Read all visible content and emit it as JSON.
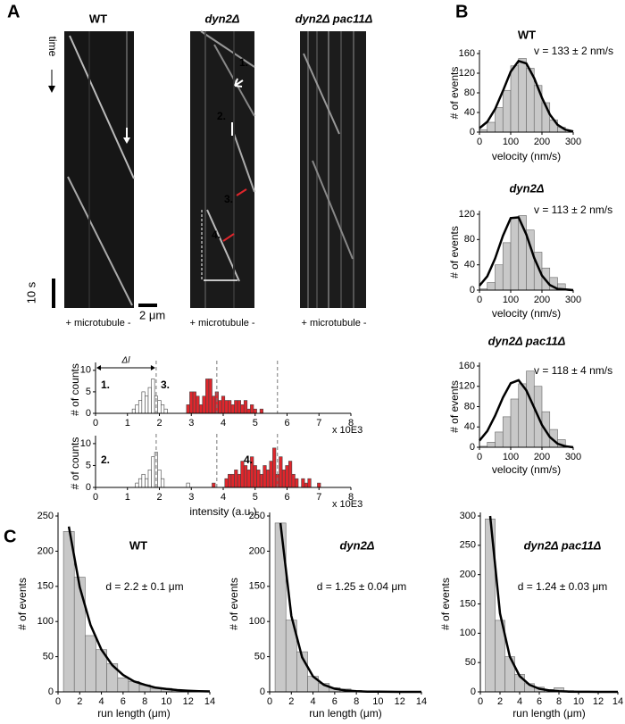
{
  "figure": {
    "panel_labels": [
      "A",
      "B",
      "C"
    ],
    "time_label": "time",
    "time_scale": "10 s",
    "length_scale": "2 μm",
    "kymographs": [
      {
        "title": "WT",
        "caption": "+ microtubule -"
      },
      {
        "title": "dyn2Δ",
        "caption": "+ microtubule -"
      },
      {
        "title": "dyn2Δ pac11Δ",
        "caption": "+ microtubule -"
      }
    ],
    "kymograph_annotations": [
      {
        "text": "1.",
        "color": "#ffffff"
      },
      {
        "text": "2.",
        "color": "#ffffff"
      },
      {
        "text": "3.",
        "color": "#e0262c"
      },
      {
        "text": "4.",
        "color": "#e0262c"
      }
    ]
  },
  "chart_data": [
    {
      "type": "bar",
      "y_label": "# of counts",
      "x_unit": "x 10E3",
      "delta_label": "Δl",
      "annotations": [
        {
          "text": "1.",
          "color": "#000000"
        },
        {
          "text": "3.",
          "color": "#e0262c"
        }
      ],
      "series": [
        {
          "color": "#ffffff",
          "x": [
            1.2,
            1.3,
            1.4,
            1.5,
            1.6,
            1.7,
            1.8,
            1.9,
            2.0,
            2.1,
            2.2
          ],
          "values": [
            1,
            2,
            3,
            5,
            4,
            6,
            8,
            4,
            3,
            2,
            1
          ]
        },
        {
          "color": "#e0262c",
          "x": [
            2.9,
            3.0,
            3.1,
            3.2,
            3.3,
            3.4,
            3.5,
            3.6,
            3.7,
            3.8,
            3.9,
            4.0,
            4.1,
            4.2,
            4.3,
            4.4,
            4.5,
            4.6,
            4.7,
            4.8,
            4.9,
            5.0,
            5.2
          ],
          "values": [
            2,
            5,
            5,
            4,
            2,
            4,
            8,
            8,
            4,
            5,
            3,
            4,
            3,
            3,
            2,
            3,
            3,
            2,
            3,
            1,
            2,
            1,
            1
          ]
        }
      ],
      "reference_lines": [
        1.9,
        3.8,
        5.7
      ],
      "xlim": [
        0,
        8
      ],
      "ylim": [
        0,
        11
      ],
      "xticks": [
        0,
        1,
        2,
        3,
        4,
        5,
        6,
        7,
        8
      ],
      "yticks": [
        0,
        5,
        10
      ]
    },
    {
      "type": "bar",
      "y_label": "# of counts",
      "x_label": "intensity (a.u.)",
      "x_unit": "x 10E3",
      "annotations": [
        {
          "text": "2.",
          "color": "#000000"
        },
        {
          "text": "4.",
          "color": "#e0262c"
        }
      ],
      "series": [
        {
          "color": "#ffffff",
          "x": [
            1.3,
            1.4,
            1.5,
            1.6,
            1.7,
            1.8,
            1.9,
            2.0,
            2.1,
            2.9
          ],
          "values": [
            1,
            2,
            3,
            2,
            4,
            7,
            8,
            4,
            2,
            1
          ]
        },
        {
          "color": "#e0262c",
          "x": [
            3.7,
            4.1,
            4.2,
            4.3,
            4.4,
            4.5,
            4.6,
            4.7,
            4.8,
            4.9,
            5.0,
            5.1,
            5.2,
            5.3,
            5.4,
            5.5,
            5.6,
            5.7,
            5.8,
            5.9,
            6.0,
            6.1,
            6.2,
            6.3,
            6.5,
            6.6,
            6.7,
            7.0
          ],
          "values": [
            1,
            2,
            3,
            3,
            4,
            3,
            6,
            5,
            4,
            7,
            5,
            4,
            3,
            5,
            4,
            6,
            9,
            3,
            7,
            4,
            5,
            6,
            3,
            2,
            2,
            1,
            2,
            1
          ]
        }
      ],
      "reference_lines": [
        1.9,
        3.8,
        5.7
      ],
      "xlim": [
        0,
        8
      ],
      "ylim": [
        0,
        11
      ],
      "xticks": [
        0,
        1,
        2,
        3,
        4,
        5,
        6,
        7,
        8
      ],
      "yticks": [
        0,
        5,
        10
      ]
    },
    {
      "type": "histogram",
      "title": "WT",
      "annotation": "v = 133 ± 2 nm/s",
      "x_label": "velocity (nm/s)",
      "y_label": "# of events",
      "color": "#c8c8c8",
      "bins": [
        0,
        25,
        50,
        75,
        100,
        125,
        150,
        175,
        200,
        225,
        250,
        275
      ],
      "values": [
        5,
        20,
        50,
        85,
        135,
        150,
        130,
        95,
        60,
        25,
        10
      ],
      "fit": {
        "x": [
          0,
          25,
          50,
          75,
          100,
          125,
          150,
          175,
          200,
          225,
          250,
          275,
          300
        ],
        "y": [
          8,
          21,
          47,
          84,
          123,
          145,
          140,
          110,
          70,
          36,
          15,
          5,
          1.5
        ]
      },
      "xlim": [
        0,
        300
      ],
      "ylim": [
        0,
        160
      ],
      "xticks": [
        0,
        100,
        200,
        300
      ],
      "yticks": [
        0,
        40,
        80,
        120,
        160
      ]
    },
    {
      "type": "histogram",
      "title": "dyn2Δ",
      "annotation": "v = 113 ± 2 nm/s",
      "x_label": "velocity (nm/s)",
      "y_label": "# of events",
      "color": "#c8c8c8",
      "bins": [
        0,
        25,
        50,
        75,
        100,
        125,
        150,
        175,
        200,
        225,
        250,
        275
      ],
      "values": [
        2,
        12,
        40,
        75,
        115,
        118,
        95,
        60,
        35,
        20,
        10
      ],
      "fit": {
        "x": [
          0,
          25,
          50,
          75,
          100,
          125,
          150,
          175,
          200,
          225,
          250,
          275,
          300
        ],
        "y": [
          7,
          22,
          50,
          86,
          114,
          115,
          88,
          51,
          23,
          8,
          2,
          1,
          0
        ]
      },
      "xlim": [
        0,
        300
      ],
      "ylim": [
        0,
        120
      ],
      "xticks": [
        0,
        100,
        200,
        300
      ],
      "yticks": [
        0,
        40,
        80,
        120
      ]
    },
    {
      "type": "histogram",
      "title": "dyn2Δ pac11Δ",
      "annotation": "v = 118 ± 4 nm/s",
      "x_label": "velocity (nm/s)",
      "y_label": "# of events",
      "color": "#c8c8c8",
      "bins": [
        0,
        25,
        50,
        75,
        100,
        125,
        150,
        175,
        200,
        225,
        250,
        275
      ],
      "values": [
        2,
        10,
        30,
        60,
        95,
        125,
        150,
        120,
        70,
        35,
        15
      ],
      "fit": {
        "x": [
          0,
          25,
          50,
          75,
          100,
          125,
          150,
          175,
          200,
          225,
          250,
          275,
          300
        ],
        "y": [
          13,
          32,
          62,
          98,
          126,
          132,
          112,
          78,
          44,
          20,
          7,
          2,
          0
        ]
      },
      "xlim": [
        0,
        300
      ],
      "ylim": [
        0,
        160
      ],
      "xticks": [
        0,
        100,
        200,
        300
      ],
      "yticks": [
        0,
        40,
        80,
        120,
        160
      ]
    },
    {
      "type": "histogram",
      "title": "WT",
      "annotation": "d = 2.2 ± 0.1 μm",
      "x_label": "run length (μm)",
      "y_label": "# of events",
      "color": "#c8c8c8",
      "bins": [
        0.5,
        1.5,
        2.5,
        3.5,
        4.5,
        5.5,
        6.5,
        7.5,
        8.5,
        9.5,
        10.5,
        11.5,
        12.5
      ],
      "values": [
        228,
        163,
        80,
        60,
        40,
        20,
        15,
        10,
        5,
        5,
        2,
        2
      ],
      "fit": {
        "x": [
          1,
          2,
          3,
          4,
          5,
          6,
          7,
          8,
          9,
          10,
          11,
          12,
          13,
          14
        ],
        "y": [
          235,
          149,
          95,
          60,
          38,
          24,
          15,
          10,
          6,
          4,
          2.5,
          1.6,
          1,
          0.6
        ]
      },
      "xlim": [
        0,
        14
      ],
      "ylim": [
        0,
        250
      ],
      "xticks": [
        0,
        2,
        4,
        6,
        8,
        10,
        12,
        14
      ],
      "yticks": [
        0,
        50,
        100,
        150,
        200,
        250
      ]
    },
    {
      "type": "histogram",
      "title": "dyn2Δ",
      "annotation": "d = 1.25 ± 0.04 μm",
      "x_label": "run length (μm)",
      "y_label": "# of events",
      "color": "#c8c8c8",
      "bins": [
        0.5,
        1.5,
        2.5,
        3.5,
        4.5,
        5.5,
        6.5,
        7.5,
        8.5,
        9.5
      ],
      "values": [
        240,
        102,
        57,
        22,
        12,
        6,
        4,
        2,
        1
      ],
      "fit": {
        "x": [
          1,
          2,
          3,
          4,
          5,
          6,
          7,
          8,
          9,
          10,
          11,
          12,
          13,
          14
        ],
        "y": [
          240,
          108,
          49,
          22,
          10,
          4.4,
          2,
          0.9,
          0.4,
          0.2,
          0.1,
          0.05,
          0.02,
          0.01
        ]
      },
      "xlim": [
        0,
        14
      ],
      "ylim": [
        0,
        250
      ],
      "xticks": [
        0,
        2,
        4,
        6,
        8,
        10,
        12,
        14
      ],
      "yticks": [
        0,
        50,
        100,
        150,
        200,
        250
      ]
    },
    {
      "type": "histogram",
      "title": "dyn2Δ pac11Δ",
      "annotation": "d = 1.24 ± 0.03 μm",
      "x_label": "run length (μm)",
      "y_label": "# of events",
      "color": "#c8c8c8",
      "bins": [
        0.5,
        1.5,
        2.5,
        3.5,
        4.5,
        5.5,
        6.5,
        7.5,
        8.5,
        9.5
      ],
      "values": [
        295,
        122,
        60,
        30,
        14,
        8,
        4,
        7,
        2
      ],
      "fit": {
        "x": [
          1,
          2,
          3,
          4,
          5,
          6,
          7,
          8,
          9,
          10,
          11,
          12,
          13,
          14
        ],
        "y": [
          300,
          134,
          60,
          27,
          12,
          5.4,
          2.4,
          1.1,
          0.5,
          0.2,
          0.1,
          0.05,
          0.02,
          0.01
        ]
      },
      "xlim": [
        0,
        14
      ],
      "ylim": [
        0,
        300
      ],
      "xticks": [
        0,
        2,
        4,
        6,
        8,
        10,
        12,
        14
      ],
      "yticks": [
        0,
        50,
        100,
        150,
        200,
        250,
        300
      ]
    }
  ]
}
